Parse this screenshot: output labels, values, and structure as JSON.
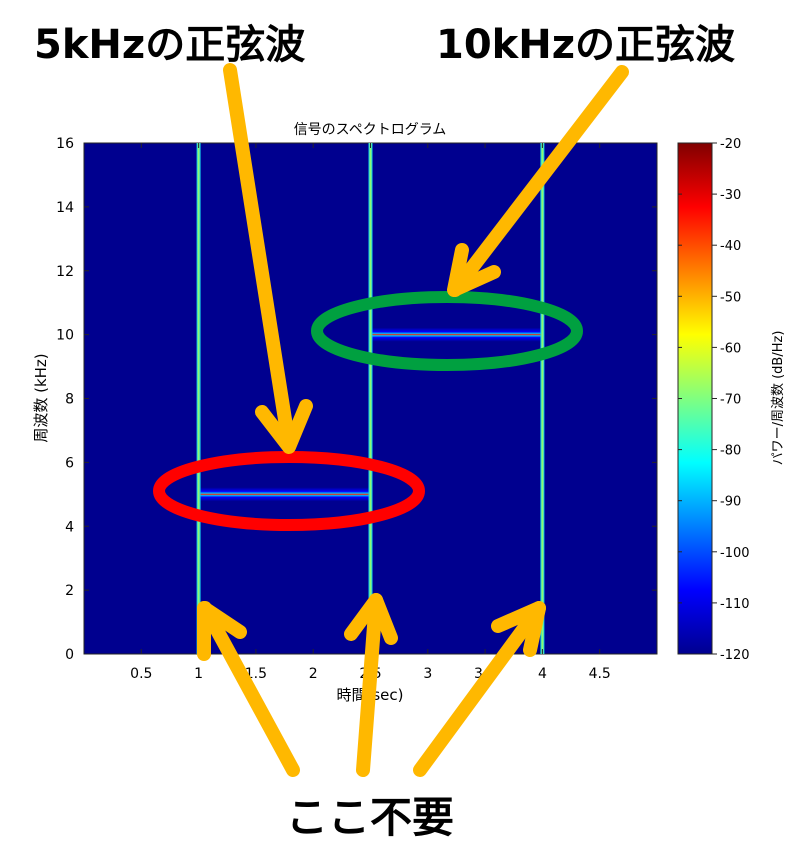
{
  "annotations": {
    "label_5khz": "5kHzの正弦波",
    "label_10khz": "10kHzの正弦波",
    "label_unneeded": "ここ不要",
    "arrow_color": "#FFB800",
    "red_ellipse_color": "#FF0000",
    "green_ellipse_color": "#00A040"
  },
  "chart_data": {
    "type": "heatmap",
    "title": "信号のスペクトログラム",
    "xlabel": "時間(sec)",
    "ylabel": "周波数 (kHz)",
    "colorbar_label": "パワー/周波数 (dB/Hz)",
    "xlim": [
      0,
      5
    ],
    "ylim": [
      0,
      16
    ],
    "clim": [
      -120,
      -20
    ],
    "xticks": [
      0.5,
      1,
      1.5,
      2,
      2.5,
      3,
      3.5,
      4,
      4.5
    ],
    "yticks": [
      0,
      2,
      4,
      6,
      8,
      10,
      12,
      14,
      16
    ],
    "cticks": [
      -20,
      -30,
      -40,
      -50,
      -60,
      -70,
      -80,
      -90,
      -100,
      -110,
      -120
    ],
    "background_level_db": -120,
    "tones": [
      {
        "frequency_khz": 5,
        "start_sec": 1,
        "end_sec": 2.5
      },
      {
        "frequency_khz": 10,
        "start_sec": 2.5,
        "end_sec": 4
      }
    ],
    "transients_sec": [
      1,
      2.5,
      4
    ],
    "background_color": "#00008F"
  }
}
